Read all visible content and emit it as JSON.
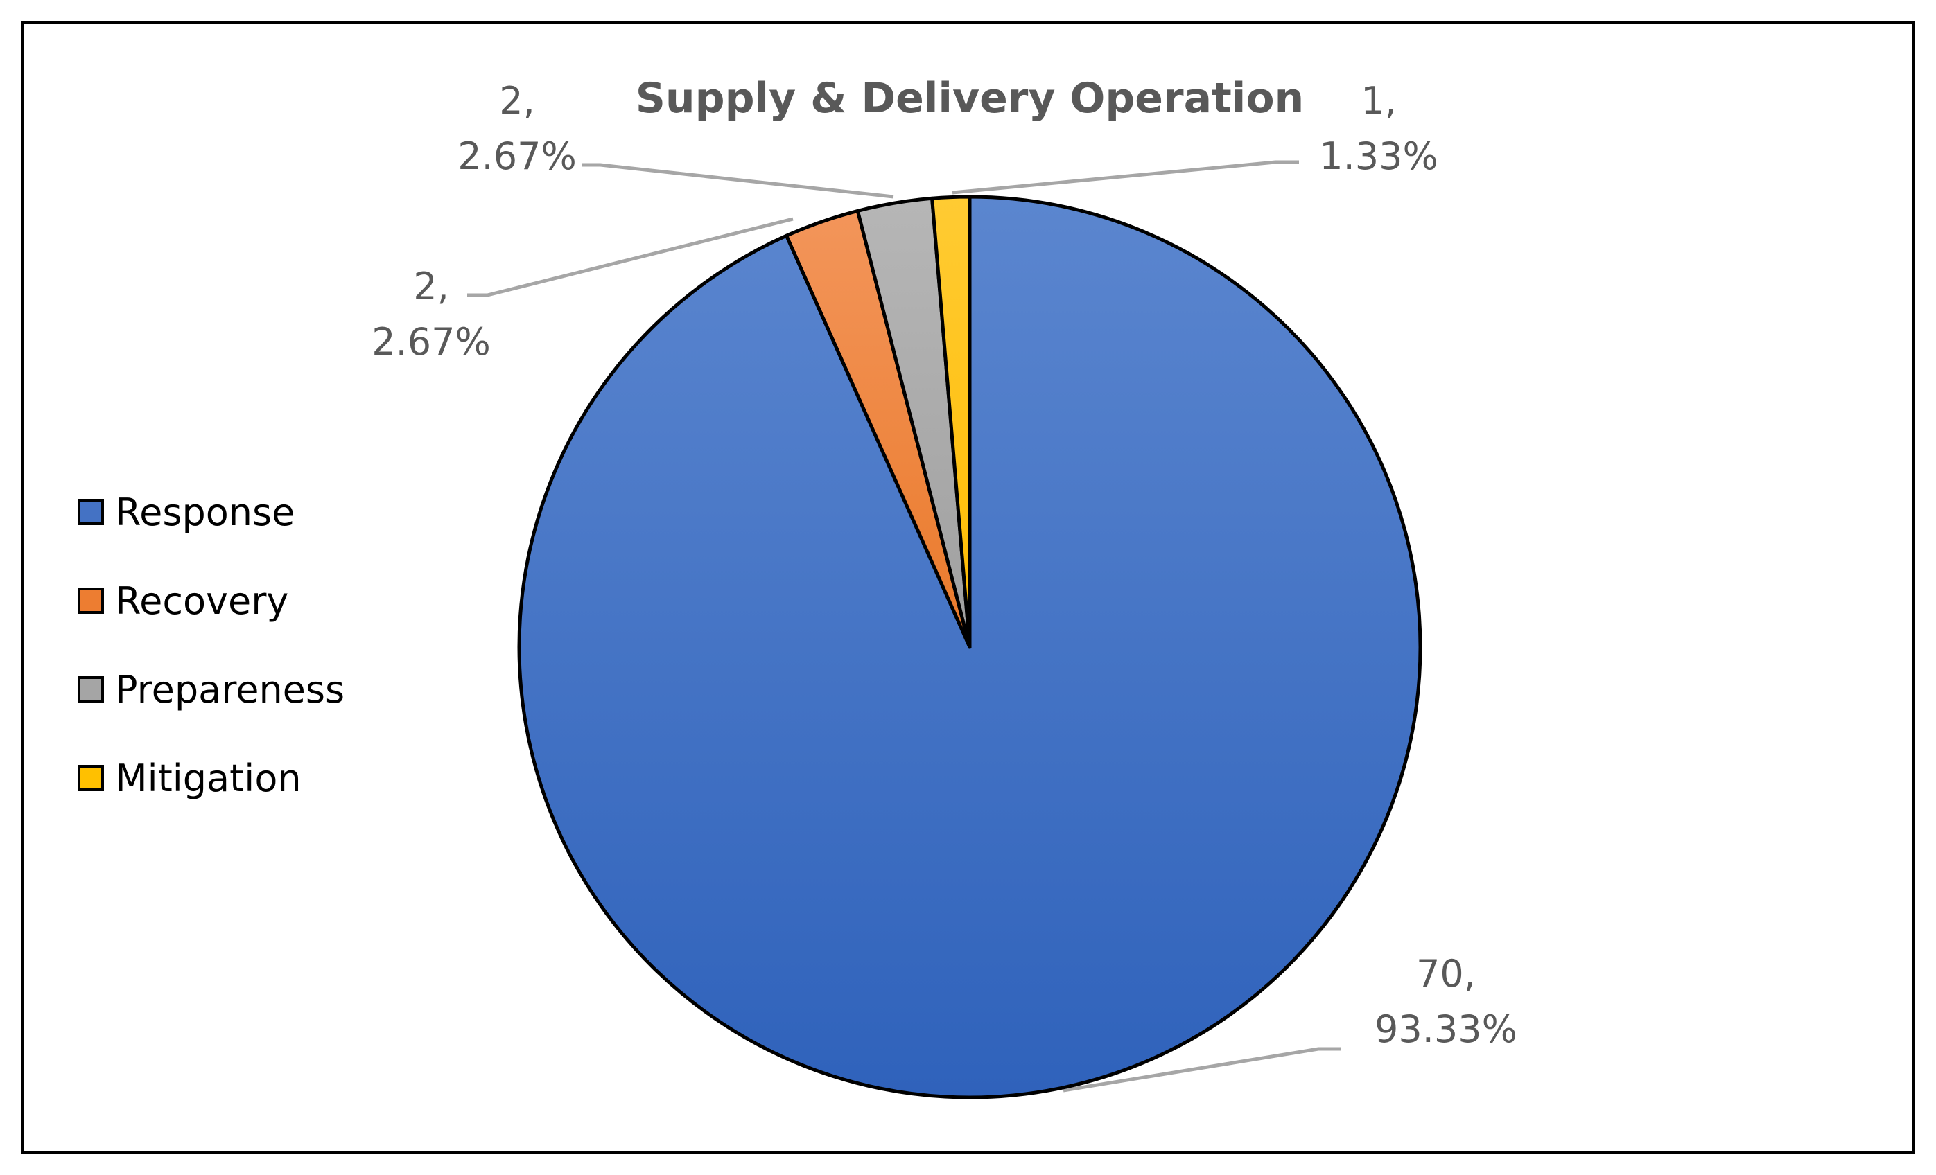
{
  "chart_data": {
    "type": "pie",
    "title": "Supply & Delivery Operation",
    "slices": [
      {
        "name": "Response",
        "value": 70,
        "percent": "93.33%",
        "color": "#4472C4"
      },
      {
        "name": "Recovery",
        "value": 2,
        "percent": "2.67%",
        "color": "#ED7D31"
      },
      {
        "name": "Prepareness",
        "value": 2,
        "percent": "2.67%",
        "color": "#A5A5A5"
      },
      {
        "name": "Mitigation",
        "value": 1,
        "percent": "1.33%",
        "color": "#FFC000"
      }
    ],
    "legend_position": "left",
    "data_labels": "value and percent"
  }
}
